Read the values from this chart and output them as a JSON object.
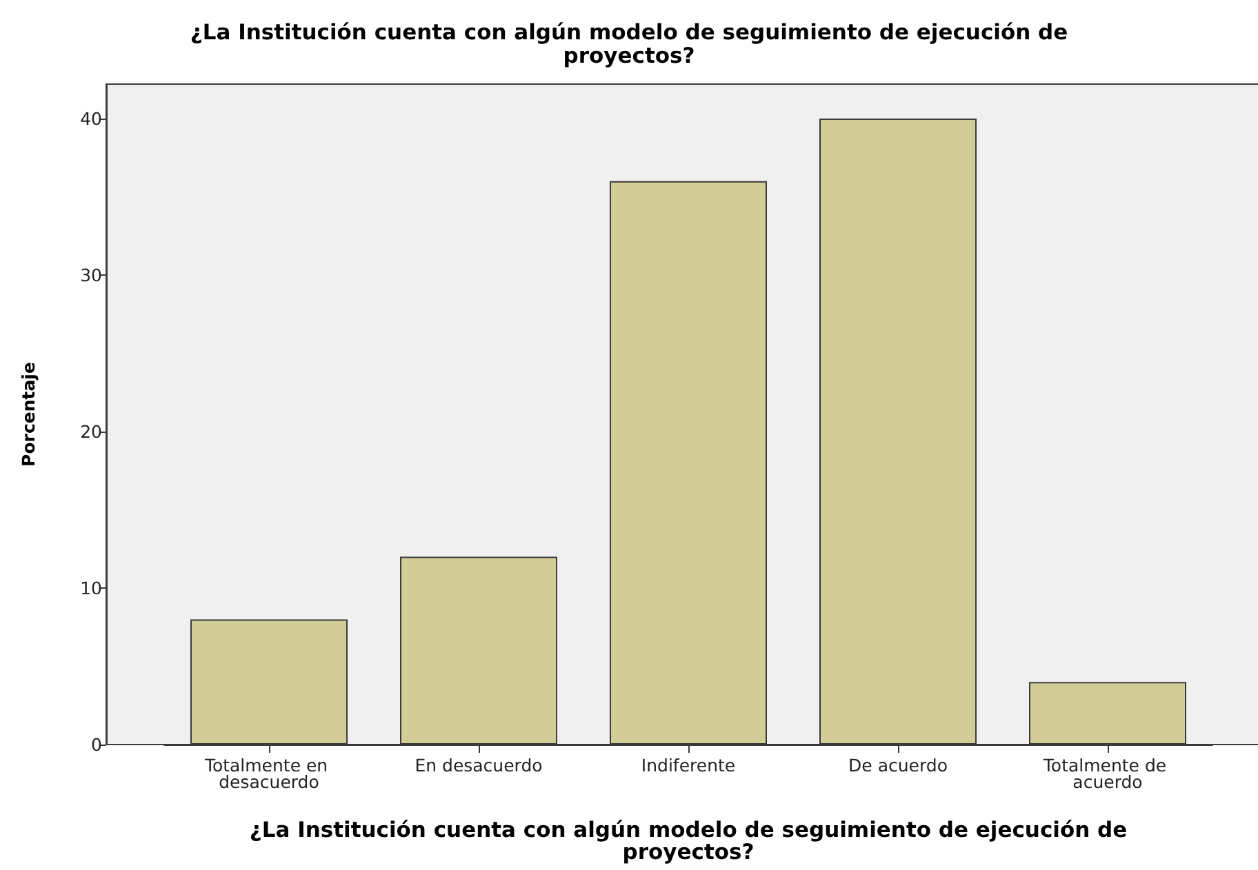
{
  "chart_data": {
    "type": "bar",
    "title": "¿La Institución cuenta con algún modelo de seguimiento de ejecución de proyectos?",
    "xlabel": "¿La Institución cuenta con algún modelo de seguimiento de ejecución de proyectos?",
    "ylabel": "Porcentaje",
    "categories": [
      "Totalmente en desacuerdo",
      "En desacuerdo",
      "Indiferente",
      "De acuerdo",
      "Totalmente de acuerdo"
    ],
    "values": [
      8,
      12,
      36,
      40,
      4
    ],
    "color": "#d2cd96",
    "ylim": [
      0,
      42.2
    ],
    "yticks": [
      0,
      10,
      20,
      30,
      40
    ],
    "grid": false
  }
}
